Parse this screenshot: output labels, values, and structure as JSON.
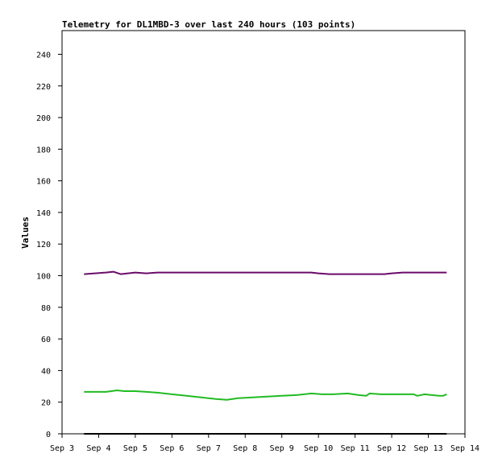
{
  "chart_data": {
    "type": "line",
    "title": "Telemetry for DL1MBD-3 over last 240 hours (103 points)",
    "xlabel": "",
    "ylabel": "Values",
    "x_ticks": [
      "Sep 3",
      "Sep 4",
      "Sep 5",
      "Sep 6",
      "Sep 7",
      "Sep 8",
      "Sep 9",
      "Sep 10",
      "Sep 11",
      "Sep 12",
      "Sep 13",
      "Sep 14"
    ],
    "xlim": [
      3.0,
      14.0
    ],
    "ylim": [
      0,
      255
    ],
    "y_ticks": [
      0,
      20,
      40,
      60,
      80,
      100,
      120,
      140,
      160,
      180,
      200,
      220,
      240
    ],
    "grid": false,
    "series": [
      {
        "color": "#6a0a6a",
        "x": [
          3.6,
          3.9,
          4.2,
          4.4,
          4.6,
          4.8,
          5.0,
          5.3,
          5.6,
          6.0,
          7.0,
          8.0,
          9.0,
          9.8,
          10.0,
          10.3,
          10.6,
          11.0,
          11.3,
          11.6,
          11.8,
          12.0,
          12.3,
          12.6,
          13.0,
          13.3,
          13.5
        ],
        "y": [
          101,
          101.5,
          102,
          102.5,
          101,
          101.5,
          102,
          101.5,
          102,
          102,
          102,
          102,
          102,
          102,
          101.5,
          101,
          101,
          101,
          101,
          101,
          101,
          101.5,
          102,
          102,
          102,
          102,
          102
        ]
      },
      {
        "color": "#22bb22",
        "x": [
          3.6,
          3.9,
          4.2,
          4.5,
          4.7,
          5.0,
          5.3,
          5.6,
          6.0,
          6.4,
          6.8,
          7.2,
          7.5,
          7.8,
          8.2,
          8.6,
          9.0,
          9.4,
          9.8,
          10.1,
          10.4,
          10.8,
          11.1,
          11.3,
          11.4,
          11.7,
          12.0,
          12.3,
          12.6,
          12.7,
          12.9,
          13.1,
          13.3,
          13.4,
          13.5
        ],
        "y": [
          26.5,
          26.5,
          26.5,
          27.5,
          27,
          27,
          26.5,
          26,
          25,
          24,
          23,
          22,
          21.5,
          22.5,
          23,
          23.5,
          24,
          24.5,
          25.5,
          25,
          25,
          25.5,
          24.5,
          24,
          25.5,
          25,
          25,
          25,
          25,
          24,
          25,
          24.5,
          24,
          24,
          25
        ]
      },
      {
        "color": "#000000",
        "x": [
          3.6,
          13.5
        ],
        "y": [
          0,
          0
        ]
      }
    ]
  }
}
